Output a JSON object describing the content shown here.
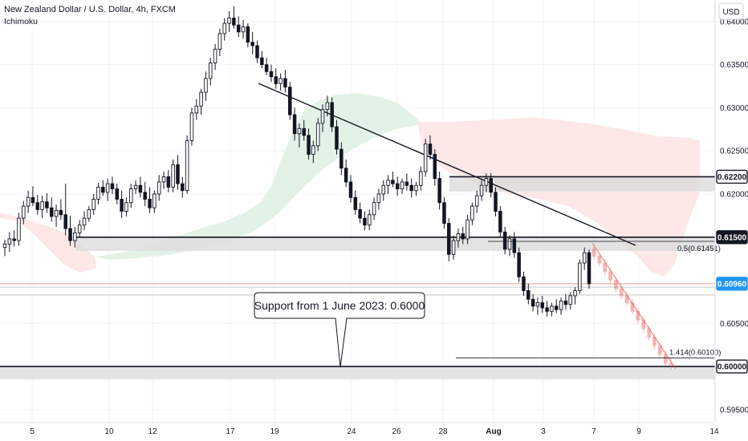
{
  "header": {
    "title": "New Zealand Dollar / U.S. Dollar, 4h, FXCM",
    "indicator": "Ichimoku",
    "currency_button": "USD"
  },
  "colors": {
    "bull": "#26a69a",
    "bear": "#131722",
    "cloud_green": "#e3f2e6",
    "cloud_red": "#fde8e8",
    "zone": "#d6d6d6",
    "price_tag": "#2196f3"
  },
  "chart_data": {
    "type": "candlestick",
    "yaxis": {
      "ticks": [
        "0.64000",
        "0.63500",
        "0.63000",
        "0.62500",
        "0.62000",
        "0.60500",
        "0.59500"
      ],
      "tick_values": [
        0.64,
        0.635,
        0.63,
        0.625,
        0.62,
        0.605,
        0.595
      ],
      "ylim": [
        0.5935,
        0.6425
      ]
    },
    "xaxis": {
      "ticks": [
        "5",
        "10",
        "12",
        "17",
        "19",
        "24",
        "26",
        "28",
        "Aug",
        "3",
        "7",
        "9",
        "14"
      ],
      "bold_ticks": [
        "Aug"
      ]
    },
    "price_tags": [
      {
        "label": "0.62200",
        "value": 0.622,
        "style": "dark-outline"
      },
      {
        "label": "0.61500",
        "value": 0.615,
        "style": "dark"
      },
      {
        "label": "0.60960",
        "value": 0.6096,
        "style": "blue"
      },
      {
        "label": "0.60000",
        "value": 0.6,
        "style": "dark-outline"
      }
    ],
    "levels": [
      {
        "value": 0.622,
        "zone": [
          0.6203,
          0.622
        ]
      },
      {
        "value": 0.615,
        "zone": [
          0.6134,
          0.615
        ]
      },
      {
        "value": 0.6,
        "zone": [
          0.5985,
          0.6
        ]
      }
    ],
    "fib_labels": [
      {
        "text": "0.5(0.61451)",
        "value": 0.61451
      },
      {
        "text": "1.414(0.60100)",
        "value": 0.601
      }
    ],
    "annotation": {
      "text": "Support from 1 June 2023: 0.6000",
      "value": 0.6
    },
    "candles": [
      [
        0.6138,
        0.6147,
        0.6128,
        0.6142
      ],
      [
        0.6142,
        0.6156,
        0.6133,
        0.6148
      ],
      [
        0.6148,
        0.6158,
        0.6139,
        0.6146
      ],
      [
        0.6146,
        0.6178,
        0.614,
        0.6172
      ],
      [
        0.6172,
        0.6192,
        0.6165,
        0.6186
      ],
      [
        0.6186,
        0.6204,
        0.6178,
        0.6196
      ],
      [
        0.6196,
        0.6209,
        0.6186,
        0.619
      ],
      [
        0.619,
        0.6199,
        0.6176,
        0.6182
      ],
      [
        0.6182,
        0.6198,
        0.6172,
        0.6191
      ],
      [
        0.6191,
        0.6201,
        0.6178,
        0.6184
      ],
      [
        0.6184,
        0.6196,
        0.6168,
        0.6174
      ],
      [
        0.6174,
        0.6188,
        0.6162,
        0.6181
      ],
      [
        0.6181,
        0.6194,
        0.617,
        0.6176
      ],
      [
        0.6176,
        0.6212,
        0.6152,
        0.616
      ],
      [
        0.616,
        0.6175,
        0.614,
        0.6146
      ],
      [
        0.6146,
        0.6162,
        0.6138,
        0.6155
      ],
      [
        0.6155,
        0.617,
        0.615,
        0.6164
      ],
      [
        0.6164,
        0.618,
        0.6158,
        0.6172
      ],
      [
        0.6172,
        0.6186,
        0.6168,
        0.6182
      ],
      [
        0.6182,
        0.62,
        0.6176,
        0.6194
      ],
      [
        0.6194,
        0.6213,
        0.6188,
        0.6208
      ],
      [
        0.6208,
        0.6216,
        0.6198,
        0.6202
      ],
      [
        0.6202,
        0.6218,
        0.6192,
        0.6212
      ],
      [
        0.6212,
        0.622,
        0.62,
        0.6206
      ],
      [
        0.6206,
        0.6212,
        0.6188,
        0.6194
      ],
      [
        0.6194,
        0.6204,
        0.6172,
        0.618
      ],
      [
        0.618,
        0.6196,
        0.6174,
        0.619
      ],
      [
        0.619,
        0.6212,
        0.6184,
        0.6206
      ],
      [
        0.6206,
        0.6216,
        0.62,
        0.621
      ],
      [
        0.621,
        0.622,
        0.6196,
        0.6202
      ],
      [
        0.6202,
        0.6214,
        0.6186,
        0.6194
      ],
      [
        0.6194,
        0.6208,
        0.6178,
        0.6184
      ],
      [
        0.6184,
        0.6204,
        0.6178,
        0.62
      ],
      [
        0.62,
        0.6222,
        0.6192,
        0.6214
      ],
      [
        0.6214,
        0.6226,
        0.6206,
        0.622
      ],
      [
        0.622,
        0.6228,
        0.6202,
        0.6208
      ],
      [
        0.6208,
        0.624,
        0.6202,
        0.6234
      ],
      [
        0.6234,
        0.6245,
        0.6205,
        0.6212
      ],
      [
        0.6212,
        0.622,
        0.6196,
        0.6204
      ],
      [
        0.6204,
        0.6268,
        0.62,
        0.6262
      ],
      [
        0.6262,
        0.63,
        0.6256,
        0.6294
      ],
      [
        0.6294,
        0.631,
        0.6286,
        0.6302
      ],
      [
        0.6302,
        0.6322,
        0.6292,
        0.6318
      ],
      [
        0.6318,
        0.6342,
        0.6308,
        0.6334
      ],
      [
        0.6334,
        0.6358,
        0.6326,
        0.6352
      ],
      [
        0.6352,
        0.6374,
        0.6344,
        0.6368
      ],
      [
        0.6368,
        0.6392,
        0.636,
        0.6386
      ],
      [
        0.6386,
        0.6404,
        0.6378,
        0.6398
      ],
      [
        0.6398,
        0.6412,
        0.6388,
        0.6404
      ],
      [
        0.6404,
        0.6418,
        0.6392,
        0.6396
      ],
      [
        0.6396,
        0.6406,
        0.6382,
        0.6388
      ],
      [
        0.6388,
        0.6402,
        0.638,
        0.6394
      ],
      [
        0.6394,
        0.6398,
        0.637,
        0.6376
      ],
      [
        0.6376,
        0.6388,
        0.6362,
        0.6372
      ],
      [
        0.6372,
        0.6378,
        0.6352,
        0.6358
      ],
      [
        0.6358,
        0.6366,
        0.6346,
        0.635
      ],
      [
        0.635,
        0.6358,
        0.6338,
        0.6342
      ],
      [
        0.6342,
        0.635,
        0.633,
        0.6336
      ],
      [
        0.6336,
        0.6346,
        0.6322,
        0.6328
      ],
      [
        0.6328,
        0.634,
        0.632,
        0.6334
      ],
      [
        0.6334,
        0.6344,
        0.6318,
        0.6324
      ],
      [
        0.6324,
        0.633,
        0.6286,
        0.6292
      ],
      [
        0.6292,
        0.63,
        0.6262,
        0.627
      ],
      [
        0.627,
        0.6282,
        0.6254,
        0.6276
      ],
      [
        0.6276,
        0.6286,
        0.6262,
        0.6268
      ],
      [
        0.6268,
        0.6276,
        0.624,
        0.6246
      ],
      [
        0.6246,
        0.6262,
        0.6236,
        0.6256
      ],
      [
        0.6256,
        0.6288,
        0.625,
        0.6282
      ],
      [
        0.6282,
        0.6304,
        0.6272,
        0.6298
      ],
      [
        0.6298,
        0.6314,
        0.629,
        0.6306
      ],
      [
        0.6306,
        0.6312,
        0.6272,
        0.6278
      ],
      [
        0.6278,
        0.6286,
        0.6246,
        0.6252
      ],
      [
        0.6252,
        0.626,
        0.6222,
        0.623
      ],
      [
        0.623,
        0.624,
        0.6208,
        0.6214
      ],
      [
        0.6214,
        0.6222,
        0.619,
        0.6196
      ],
      [
        0.6196,
        0.6204,
        0.6176,
        0.6182
      ],
      [
        0.6182,
        0.619,
        0.6166,
        0.6172
      ],
      [
        0.6172,
        0.618,
        0.6158,
        0.6164
      ],
      [
        0.6164,
        0.6182,
        0.6158,
        0.6176
      ],
      [
        0.6176,
        0.6196,
        0.617,
        0.619
      ],
      [
        0.619,
        0.6206,
        0.6182,
        0.62
      ],
      [
        0.62,
        0.6216,
        0.6192,
        0.621
      ],
      [
        0.621,
        0.6222,
        0.62,
        0.6216
      ],
      [
        0.6216,
        0.6226,
        0.6208,
        0.6212
      ],
      [
        0.6212,
        0.622,
        0.6198,
        0.6206
      ],
      [
        0.6206,
        0.6218,
        0.62,
        0.6214
      ],
      [
        0.6214,
        0.6224,
        0.6204,
        0.621
      ],
      [
        0.621,
        0.6218,
        0.6196,
        0.6204
      ],
      [
        0.6204,
        0.6214,
        0.6198,
        0.621
      ],
      [
        0.621,
        0.6232,
        0.6204,
        0.6226
      ],
      [
        0.6226,
        0.6264,
        0.622,
        0.6258
      ],
      [
        0.6258,
        0.6268,
        0.624,
        0.6246
      ],
      [
        0.6246,
        0.6252,
        0.621,
        0.6218
      ],
      [
        0.6218,
        0.6226,
        0.6182,
        0.619
      ],
      [
        0.619,
        0.6196,
        0.616,
        0.6166
      ],
      [
        0.6166,
        0.6172,
        0.6122,
        0.613
      ],
      [
        0.613,
        0.6152,
        0.6124,
        0.6146
      ],
      [
        0.6146,
        0.616,
        0.6138,
        0.6154
      ],
      [
        0.6154,
        0.6162,
        0.6142,
        0.6148
      ],
      [
        0.6148,
        0.6176,
        0.6142,
        0.617
      ],
      [
        0.617,
        0.619,
        0.6164,
        0.6186
      ],
      [
        0.6186,
        0.6204,
        0.6178,
        0.6198
      ],
      [
        0.6198,
        0.6216,
        0.6192,
        0.621
      ],
      [
        0.621,
        0.6224,
        0.6202,
        0.6218
      ],
      [
        0.6218,
        0.6224,
        0.6196,
        0.6202
      ],
      [
        0.6202,
        0.6208,
        0.6174,
        0.618
      ],
      [
        0.618,
        0.6186,
        0.615,
        0.6156
      ],
      [
        0.6156,
        0.6162,
        0.613,
        0.6136
      ],
      [
        0.6136,
        0.6152,
        0.6128,
        0.6148
      ],
      [
        0.6148,
        0.6156,
        0.6126,
        0.6132
      ],
      [
        0.6132,
        0.6138,
        0.6098,
        0.6104
      ],
      [
        0.6104,
        0.611,
        0.6082,
        0.6088
      ],
      [
        0.6088,
        0.6096,
        0.6072,
        0.6078
      ],
      [
        0.6078,
        0.6084,
        0.6064,
        0.607
      ],
      [
        0.607,
        0.608,
        0.606,
        0.6074
      ],
      [
        0.6074,
        0.6082,
        0.6062,
        0.6068
      ],
      [
        0.6068,
        0.6076,
        0.6058,
        0.6064
      ],
      [
        0.6064,
        0.6074,
        0.6058,
        0.607
      ],
      [
        0.607,
        0.6078,
        0.6062,
        0.6066
      ],
      [
        0.6066,
        0.608,
        0.606,
        0.6076
      ],
      [
        0.6076,
        0.6084,
        0.6066,
        0.6072
      ],
      [
        0.6072,
        0.6086,
        0.6066,
        0.6082
      ],
      [
        0.6082,
        0.6092,
        0.6072,
        0.6088
      ],
      [
        0.6088,
        0.6124,
        0.6084,
        0.612
      ],
      [
        0.612,
        0.6138,
        0.6112,
        0.6132
      ],
      [
        0.6132,
        0.6136,
        0.609,
        0.6096
      ]
    ],
    "projection": [
      [
        0.6136,
        0.614,
        0.6124,
        0.6128
      ],
      [
        0.6128,
        0.6132,
        0.6116,
        0.612
      ],
      [
        0.612,
        0.6124,
        0.6106,
        0.611
      ],
      [
        0.611,
        0.6114,
        0.6096,
        0.61
      ],
      [
        0.61,
        0.6104,
        0.6086,
        0.609
      ],
      [
        0.609,
        0.6094,
        0.6078,
        0.6082
      ],
      [
        0.6082,
        0.6086,
        0.607,
        0.6074
      ],
      [
        0.6074,
        0.6078,
        0.606,
        0.6064
      ],
      [
        0.6064,
        0.6068,
        0.605,
        0.6054
      ],
      [
        0.6054,
        0.6058,
        0.604,
        0.6044
      ],
      [
        0.6044,
        0.6048,
        0.603,
        0.6034
      ],
      [
        0.6034,
        0.6038,
        0.602,
        0.6024
      ],
      [
        0.6024,
        0.6028,
        0.601,
        0.6014
      ],
      [
        0.6014,
        0.6018,
        0.6,
        0.6004
      ],
      [
        0.6004,
        0.601,
        0.5996,
        0.6002
      ]
    ]
  }
}
